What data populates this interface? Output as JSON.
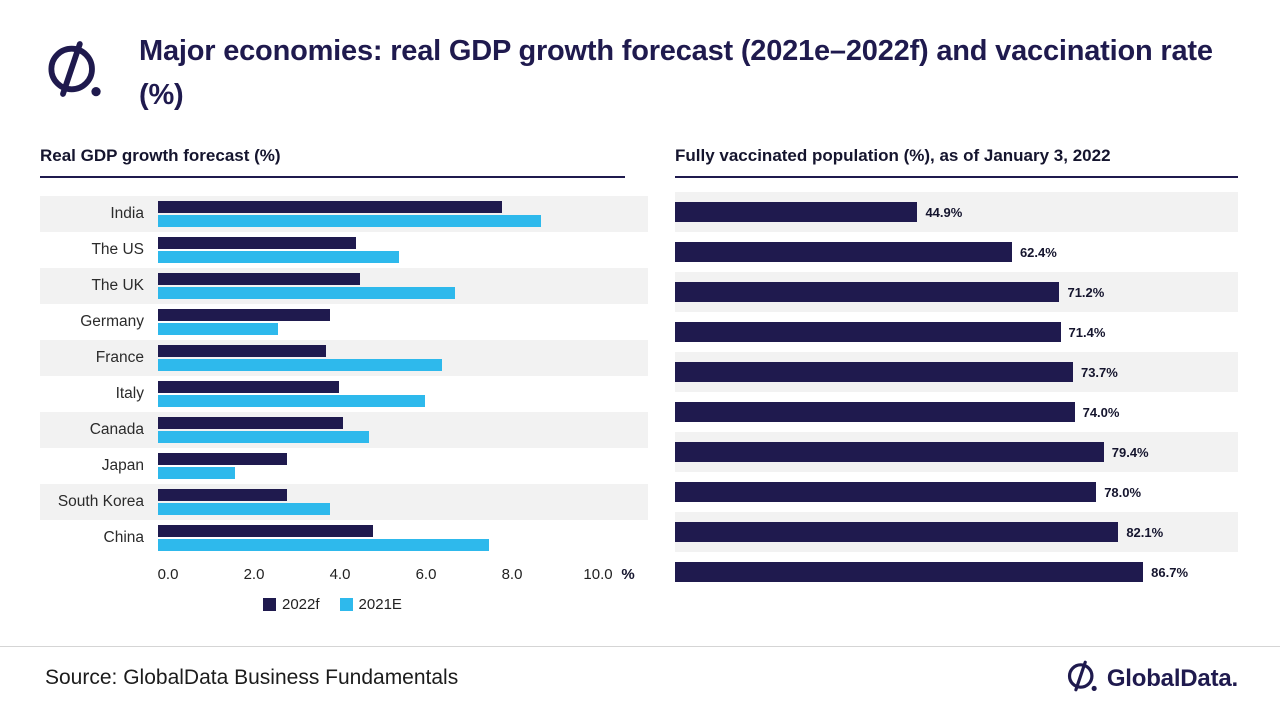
{
  "header": {
    "title": "Major economies: real GDP growth forecast (2021e–2022f) and vaccination rate (%)"
  },
  "colors": {
    "navy": "#1F1A4E",
    "cyan": "#2EB9EC",
    "stripe": "#F2F2F2"
  },
  "left_chart": {
    "heading": "Real GDP growth forecast (%)",
    "axis_ticks": [
      "0.0",
      "2.0",
      "4.0",
      "6.0",
      "8.0",
      "10.0"
    ],
    "axis_unit": "%",
    "legend": [
      {
        "label": "2022f",
        "color": "#1F1A4E"
      },
      {
        "label": "2021E",
        "color": "#2EB9EC"
      }
    ]
  },
  "right_chart": {
    "heading": "Fully vaccinated population (%), as of January 3, 2022"
  },
  "chart_data": [
    {
      "type": "bar",
      "orientation": "horizontal",
      "title": "Real GDP growth forecast (%)",
      "categories": [
        "India",
        "The US",
        "The UK",
        "Germany",
        "France",
        "Italy",
        "Canada",
        "Japan",
        "South Korea",
        "China"
      ],
      "series": [
        {
          "name": "2022f",
          "color": "#1F1A4E",
          "values": [
            8.0,
            4.6,
            4.7,
            4.0,
            3.9,
            4.2,
            4.3,
            3.0,
            3.0,
            5.0
          ]
        },
        {
          "name": "2021E",
          "color": "#2EB9EC",
          "values": [
            8.9,
            5.6,
            6.9,
            2.8,
            6.6,
            6.2,
            4.9,
            1.8,
            4.0,
            7.7
          ]
        }
      ],
      "xlim": [
        0,
        10
      ],
      "xticks": [
        0,
        2,
        4,
        6,
        8,
        10
      ],
      "unit": "%",
      "legend_position": "bottom",
      "grid": false
    },
    {
      "type": "bar",
      "orientation": "horizontal",
      "title": "Fully vaccinated population (%), as of January 3, 2022",
      "categories": [
        "India",
        "The US",
        "The UK",
        "Germany",
        "France",
        "Italy",
        "Canada",
        "Japan",
        "South Korea",
        "China"
      ],
      "values": [
        44.9,
        62.4,
        71.2,
        71.4,
        73.7,
        74.0,
        79.4,
        78.0,
        82.1,
        86.7
      ],
      "data_labels": [
        "44.9%",
        "62.4%",
        "71.2%",
        "71.4%",
        "73.7%",
        "74.0%",
        "79.4%",
        "78.0%",
        "82.1%",
        "86.7%"
      ],
      "xlim": [
        0,
        100
      ],
      "grid": false
    }
  ],
  "footer": {
    "source": "Source: GlobalData Business Fundamentals",
    "brand": "GlobalData."
  }
}
